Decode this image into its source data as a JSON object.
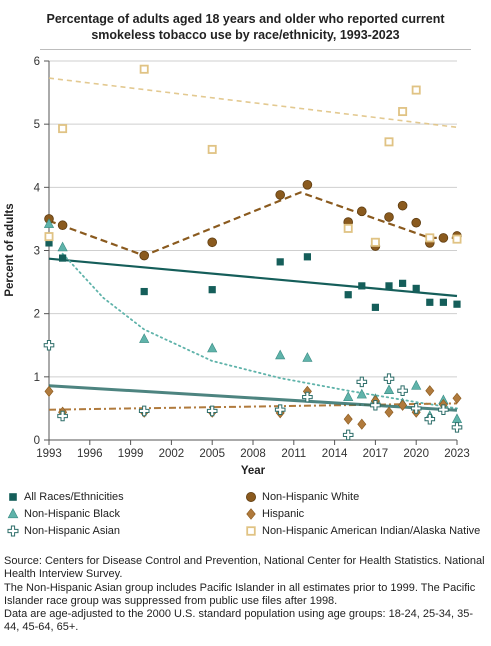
{
  "title": "Percentage of adults aged 18 years and older who reported current smokeless tobacco use by race/ethnicity, 1993-2023",
  "source_lines": [
    "Source: Centers for Disease Control and Prevention, National Center for Health Statistics. National Health Interview Survey.",
    "The Non-Hispanic Asian group includes Pacific Islander in all estimates prior to 1999. The Pacific Islander race group was suppressed from public use files after 1998.",
    "Data are age-adjusted to the 2000 U.S. standard population using age groups: 18-24, 25-34, 35-44, 45-64, 65+."
  ],
  "chart_data": {
    "type": "scatter",
    "title": "Percentage of adults aged 18 years and older who reported current smokeless tobacco use by race/ethnicity, 1993-2023",
    "xlabel": "Year",
    "ylabel": "Percent of adults",
    "xlim": [
      1993,
      2023
    ],
    "ylim": [
      0,
      6
    ],
    "x_ticks": [
      "1993",
      "1996",
      "1999",
      "2002",
      "2005",
      "2008",
      "2011",
      "2014",
      "2017",
      "2020",
      "2023"
    ],
    "y_ticks": [
      "0",
      "1",
      "2",
      "3",
      "4",
      "5",
      "6"
    ],
    "grid": "horizontal",
    "legend_position": "bottom",
    "series": [
      {
        "name": "All Races/Ethnicities",
        "marker": "square",
        "color": "#155e5a",
        "points": [
          [
            1993,
            3.12
          ],
          [
            1994,
            2.88
          ],
          [
            2000,
            2.35
          ],
          [
            2005,
            2.38
          ],
          [
            2010,
            2.82
          ],
          [
            2012,
            2.9
          ],
          [
            2015,
            2.3
          ],
          [
            2016,
            2.44
          ],
          [
            2017,
            2.1
          ],
          [
            2018,
            2.44
          ],
          [
            2019,
            2.48
          ],
          [
            2020,
            2.4
          ],
          [
            2021,
            2.18
          ],
          [
            2022,
            2.18
          ],
          [
            2023,
            2.15
          ]
        ],
        "trend": {
          "style": "solid",
          "from": [
            1993,
            2.87
          ],
          "to": [
            2023,
            2.28
          ]
        }
      },
      {
        "name": "Non-Hispanic White",
        "marker": "circle",
        "color": "#8a5a1e",
        "points": [
          [
            1993,
            3.5
          ],
          [
            1994,
            3.4
          ],
          [
            2000,
            2.92
          ],
          [
            2005,
            3.13
          ],
          [
            2010,
            3.88
          ],
          [
            2012,
            4.04
          ],
          [
            2015,
            3.45
          ],
          [
            2016,
            3.62
          ],
          [
            2017,
            3.07
          ],
          [
            2018,
            3.53
          ],
          [
            2019,
            3.71
          ],
          [
            2020,
            3.44
          ],
          [
            2021,
            3.12
          ],
          [
            2022,
            3.2
          ],
          [
            2023,
            3.23
          ]
        ],
        "trend": {
          "style": "dashed",
          "points": [
            [
              1993,
              3.47
            ],
            [
              2000,
              2.92
            ],
            [
              2011.5,
              3.92
            ],
            [
              2021,
              3.2
            ],
            [
              2023,
              3.2
            ]
          ]
        }
      },
      {
        "name": "Non-Hispanic Black",
        "marker": "triangle",
        "color": "#5fb3aa",
        "points": [
          [
            1993,
            3.42
          ],
          [
            1994,
            3.05
          ],
          [
            2000,
            1.6
          ],
          [
            2005,
            1.45
          ],
          [
            2010,
            1.34
          ],
          [
            2012,
            1.3
          ],
          [
            2015,
            0.68
          ],
          [
            2016,
            0.72
          ],
          [
            2017,
            0.65
          ],
          [
            2018,
            0.79
          ],
          [
            2019,
            0.58
          ],
          [
            2020,
            0.86
          ],
          [
            2021,
            0.38
          ],
          [
            2022,
            0.63
          ],
          [
            2023,
            0.33
          ]
        ],
        "trend": {
          "style": "dotted",
          "points": [
            [
              1994,
              2.95
            ],
            [
              1997,
              2.25
            ],
            [
              2000,
              1.75
            ],
            [
              2005,
              1.25
            ],
            [
              2010,
              0.98
            ],
            [
              2015,
              0.78
            ],
            [
              2020,
              0.6
            ],
            [
              2023,
              0.5
            ]
          ]
        }
      },
      {
        "name": "Hispanic",
        "marker": "diamond",
        "color": "#b07a3c",
        "points": [
          [
            1993,
            0.77
          ],
          [
            1994,
            0.44
          ],
          [
            2000,
            0.44
          ],
          [
            2005,
            0.44
          ],
          [
            2010,
            0.43
          ],
          [
            2012,
            0.77
          ],
          [
            2015,
            0.33
          ],
          [
            2016,
            0.25
          ],
          [
            2017,
            0.62
          ],
          [
            2018,
            0.44
          ],
          [
            2019,
            0.55
          ],
          [
            2020,
            0.44
          ],
          [
            2021,
            0.78
          ],
          [
            2022,
            0.56
          ],
          [
            2023,
            0.66
          ]
        ],
        "trend": {
          "style": "dashdot",
          "from": [
            1993,
            0.48
          ],
          "to": [
            2023,
            0.58
          ]
        }
      },
      {
        "name": "Non-Hispanic Asian",
        "marker": "plus",
        "color": "#2e6e6a",
        "points": [
          [
            1993,
            1.5
          ],
          [
            1994,
            0.38
          ],
          [
            2000,
            0.46
          ],
          [
            2005,
            0.46
          ],
          [
            2010,
            0.48
          ],
          [
            2012,
            0.68
          ],
          [
            2015,
            0.08
          ],
          [
            2016,
            0.92
          ],
          [
            2017,
            0.55
          ],
          [
            2018,
            0.97
          ],
          [
            2019,
            0.78
          ],
          [
            2020,
            0.5
          ],
          [
            2021,
            0.33
          ],
          [
            2022,
            0.48
          ],
          [
            2023,
            0.2
          ]
        ],
        "trend": {
          "style": "solid-light",
          "from": [
            1993,
            0.86
          ],
          "to": [
            2023,
            0.47
          ]
        }
      },
      {
        "name": "Non-Hispanic American Indian/Alaska Native",
        "marker": "open-square",
        "color": "#e0c384",
        "points": [
          [
            1993,
            3.22
          ],
          [
            1994,
            4.93
          ],
          [
            2000,
            5.87
          ],
          [
            2005,
            4.6
          ],
          [
            2015,
            3.35
          ],
          [
            2017,
            3.13
          ],
          [
            2018,
            4.72
          ],
          [
            2019,
            5.2
          ],
          [
            2020,
            5.54
          ],
          [
            2021,
            3.2
          ],
          [
            2023,
            3.18
          ]
        ],
        "trend": {
          "style": "dashed-light",
          "from": [
            1993,
            5.73
          ],
          "to": [
            2023,
            4.95
          ]
        }
      }
    ]
  }
}
